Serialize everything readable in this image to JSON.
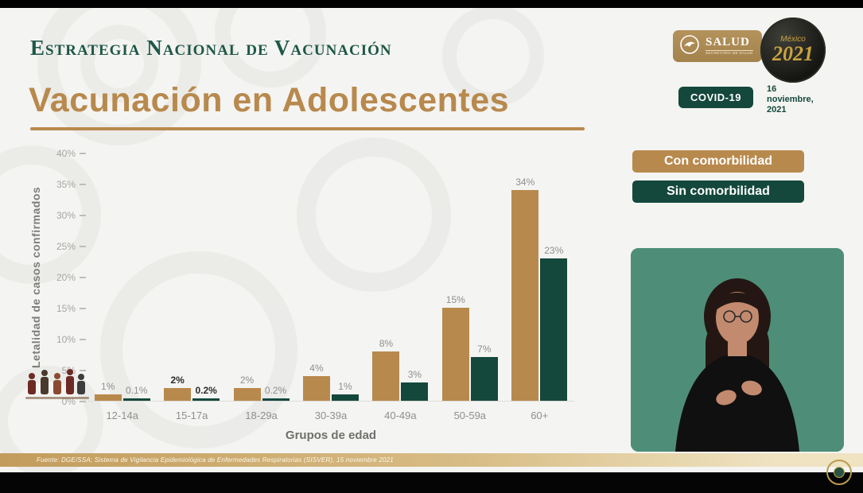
{
  "slide": {
    "kicker": "Estrategia Nacional de Vacunación",
    "title": "Vacunación en Adolescentes"
  },
  "logos": {
    "salud": {
      "name": "SALUD",
      "subtitle": "Secretaría de Salud"
    },
    "badge2021": {
      "top": "México",
      "year": "2021"
    }
  },
  "meta": {
    "covid_badge": "COVID-19",
    "date": "16 noviembre, 2021",
    "date_lines": [
      "16",
      "noviembre,",
      "2021"
    ]
  },
  "legend": {
    "items": [
      {
        "label": "Con comorbilidad",
        "color": "#b8894d"
      },
      {
        "label": "Sin comorbilidad",
        "color": "#14483c"
      }
    ]
  },
  "chart_data": {
    "type": "bar",
    "title": "Vacunación en Adolescentes",
    "categories": [
      "12-14a",
      "15-17a",
      "18-29a",
      "30-39a",
      "40-49a",
      "50-59a",
      "60+"
    ],
    "series": [
      {
        "name": "Con comorbilidad",
        "color": "#b8894d",
        "values": [
          1,
          2,
          2,
          4,
          8,
          15,
          34
        ],
        "labels": [
          "1%",
          "2%",
          "2%",
          "4%",
          "8%",
          "15%",
          "34%"
        ]
      },
      {
        "name": "Sin comorbilidad",
        "color": "#14483c",
        "values": [
          0.1,
          0.2,
          0.2,
          1,
          3,
          7,
          23
        ],
        "labels": [
          "0.1%",
          "0.2%",
          "0.2%",
          "1%",
          "3%",
          "7%",
          "23%"
        ]
      }
    ],
    "emphasized_category": "15-17a",
    "ylabel": "Letalidad de casos confirmados",
    "xlabel": "Grupos de edad",
    "ylim": [
      0,
      40
    ],
    "yticks": [
      "40%",
      "35%",
      "30%",
      "25%",
      "20%",
      "15%",
      "10%",
      "5%",
      "0%"
    ],
    "grid": false,
    "legend_position": "top-right"
  },
  "footer": {
    "source": "Fuente: DGE/SSA; Sistema de Vigilancia Epidemiológica de Enfermedades Respiratorias (SISVER), 15 noviembre 2021"
  },
  "colors": {
    "accent_tan": "#b8894d",
    "accent_green": "#14483c",
    "interpreter_bg": "#4e8e78",
    "title_green": "#1d5747"
  }
}
